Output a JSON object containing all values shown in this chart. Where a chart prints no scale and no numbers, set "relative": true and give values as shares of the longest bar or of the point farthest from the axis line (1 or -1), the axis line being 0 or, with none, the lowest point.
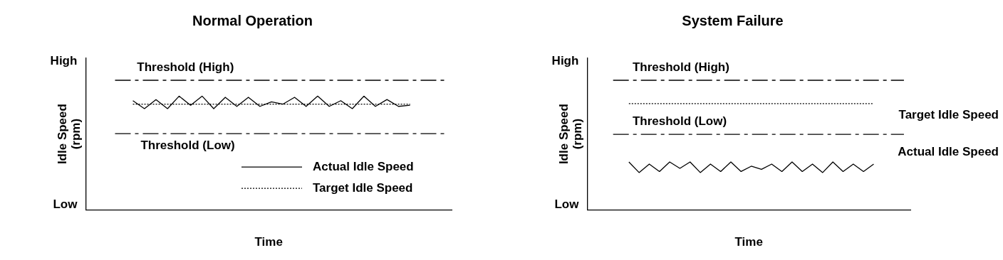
{
  "chart_data": [
    {
      "type": "line",
      "title": "Normal Operation",
      "xlabel": "Time",
      "ylabel": "Idle Speed\n(rpm)",
      "relative": true,
      "categories": [
        null,
        null,
        null,
        null,
        null,
        null,
        null,
        null,
        null,
        null,
        null,
        null,
        null,
        null,
        null,
        null,
        null,
        null,
        null,
        null,
        null,
        null,
        null,
        null,
        null
      ],
      "annotations": [
        "High",
        "Low"
      ],
      "series": [
        {
          "name": "Actual Idle Speed",
          "color": "#000000",
          "line_style": "solid",
          "values": [
            0.96,
            0.89,
            0.97,
            0.89,
            1,
            0.92,
            1,
            0.89,
            0.99,
            0.91,
            0.99,
            0.91,
            0.95,
            0.93,
            0.99,
            0.91,
            1,
            0.91,
            0.96,
            0.89,
            1,
            0.91,
            0.97,
            0.91,
            0.92
          ]
        },
        {
          "name": "Target Idle Speed",
          "color": "#000000",
          "line_style": "dotted",
          "values": [
            0.93,
            0.93,
            0.93,
            0.93,
            0.93,
            0.93,
            0.93,
            0.93,
            0.93,
            0.93,
            0.93,
            0.93,
            0.93,
            0.93,
            0.93,
            0.93,
            0.93,
            0.93,
            0.93,
            0.93,
            0.93,
            0.93,
            0.93,
            0.93,
            0.93
          ]
        }
      ],
      "ref_lines": [
        {
          "axis": "y",
          "value": 1.14,
          "label": "Threshold (High)",
          "color": "#000000",
          "line_style": "dashed"
        },
        {
          "axis": "y",
          "value": 0.67,
          "label": "Threshold (Low)",
          "color": "#000000",
          "line_style": "dashed"
        }
      ],
      "legend": "bottom right",
      "grid": false,
      "marker": "none"
    },
    {
      "type": "line",
      "title": "System Failure",
      "xlabel": "Time",
      "ylabel": "Idle Speed\n(rpm)",
      "relative": true,
      "categories": [
        null,
        null,
        null,
        null,
        null,
        null,
        null,
        null,
        null,
        null,
        null,
        null,
        null,
        null,
        null,
        null,
        null,
        null,
        null,
        null,
        null,
        null,
        null,
        null,
        null
      ],
      "annotations": [
        "High",
        "Low"
      ],
      "series": [
        {
          "name": "Actual Idle Speed",
          "color": "#000000",
          "line_style": "solid",
          "values": [
            0.45,
            0.35,
            0.43,
            0.36,
            0.45,
            0.39,
            0.45,
            0.35,
            0.43,
            0.36,
            0.45,
            0.36,
            0.41,
            0.38,
            0.43,
            0.36,
            0.45,
            0.36,
            0.43,
            0.35,
            0.45,
            0.36,
            0.43,
            0.36,
            0.43
          ]
        },
        {
          "name": "Target Idle Speed",
          "color": "#000000",
          "line_style": "dotted",
          "values": [
            1,
            1,
            1,
            1,
            1,
            1,
            1,
            1,
            1,
            1,
            1,
            1,
            1,
            1,
            1,
            1,
            1,
            1,
            1,
            1,
            1,
            1,
            1,
            1,
            1
          ]
        }
      ],
      "ref_lines": [
        {
          "axis": "y",
          "value": 1.22,
          "label": "Threshold (High)",
          "color": "#000000",
          "line_style": "dashed"
        },
        {
          "axis": "y",
          "value": 0.71,
          "label": "Threshold (Low)",
          "color": "#000000",
          "line_style": "dashed"
        }
      ],
      "legend": false,
      "grid": false,
      "marker": "none"
    }
  ]
}
